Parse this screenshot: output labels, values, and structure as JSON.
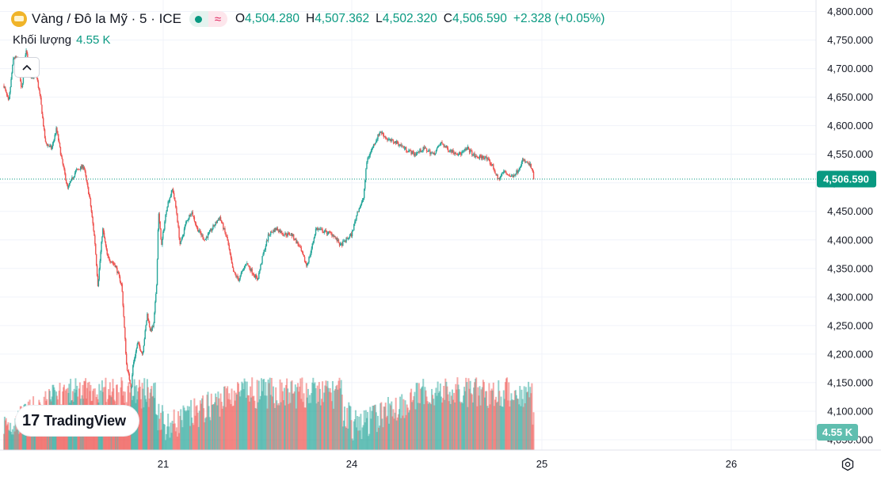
{
  "header": {
    "symbol_title": "Vàng / Đô la Mỹ · 5 · ICE",
    "open_label": "O",
    "open_value": "4,504.280",
    "high_label": "H",
    "high_value": "4,507.362",
    "low_label": "L",
    "low_value": "4,502.320",
    "close_label": "C",
    "close_value": "4,506.590",
    "change": "+2.328 (+0.05%)"
  },
  "volume_legend": {
    "label": "Khối lượng",
    "value": "4.55 K"
  },
  "branding": {
    "logo_mark": "17",
    "logo_text": "TradingView"
  },
  "colors": {
    "up": "#26a69a",
    "down": "#ef5350",
    "up_text": "#089981",
    "price_tag": "#089981"
  },
  "chart_data": {
    "type": "candlestick",
    "title": "Vàng / Đô la Mỹ · 5 · ICE",
    "y_axis": {
      "min": 4050,
      "max": 4800,
      "ticks": [
        "4,800.000",
        "4,750.000",
        "4,700.000",
        "4,650.000",
        "4,600.000",
        "4,550.000",
        "4,500.000",
        "4,450.000",
        "4,400.000",
        "4,350.000",
        "4,300.000",
        "4,250.000",
        "4,200.000",
        "4,150.000",
        "4,100.000",
        "4,050.000"
      ]
    },
    "x_axis": {
      "labels": [
        "21",
        "24",
        "25",
        "26"
      ]
    },
    "last_price": {
      "label": "4,506.590",
      "value": 4506.59
    },
    "last_volume": {
      "label": "4.55 K",
      "value": 4.55
    },
    "price_path": [
      [
        0,
        4670
      ],
      [
        0.03,
        4640
      ],
      [
        0.06,
        4720
      ],
      [
        0.09,
        4715
      ],
      [
        0.11,
        4660
      ],
      [
        0.14,
        4735
      ],
      [
        0.17,
        4680
      ],
      [
        0.2,
        4695
      ],
      [
        0.23,
        4645
      ],
      [
        0.26,
        4570
      ],
      [
        0.3,
        4560
      ],
      [
        0.33,
        4595
      ],
      [
        0.36,
        4545
      ],
      [
        0.4,
        4490
      ],
      [
        0.45,
        4520
      ],
      [
        0.5,
        4530
      ],
      [
        0.54,
        4470
      ],
      [
        0.57,
        4400
      ],
      [
        0.59,
        4320
      ],
      [
        0.62,
        4420
      ],
      [
        0.65,
        4370
      ],
      [
        0.7,
        4355
      ],
      [
        0.74,
        4320
      ],
      [
        0.77,
        4180
      ],
      [
        0.8,
        4140
      ],
      [
        0.81,
        4180
      ],
      [
        0.84,
        4220
      ],
      [
        0.87,
        4200
      ],
      [
        0.9,
        4270
      ],
      [
        0.92,
        4240
      ],
      [
        0.94,
        4250
      ],
      [
        0.96,
        4330
      ],
      [
        0.97,
        4450
      ],
      [
        0.99,
        4390
      ],
      [
        1.02,
        4460
      ],
      [
        1.05,
        4490
      ],
      [
        1.07,
        4450
      ],
      [
        1.09,
        4390
      ],
      [
        1.12,
        4430
      ],
      [
        1.15,
        4450
      ],
      [
        1.18,
        4420
      ],
      [
        1.22,
        4400
      ],
      [
        1.26,
        4420
      ],
      [
        1.3,
        4440
      ],
      [
        1.34,
        4400
      ],
      [
        1.37,
        4345
      ],
      [
        1.4,
        4330
      ],
      [
        1.44,
        4360
      ],
      [
        1.48,
        4340
      ],
      [
        1.5,
        4330
      ],
      [
        1.53,
        4375
      ],
      [
        1.56,
        4410
      ],
      [
        1.6,
        4420
      ],
      [
        1.64,
        4410
      ],
      [
        1.68,
        4410
      ],
      [
        1.72,
        4390
      ],
      [
        1.76,
        4355
      ],
      [
        1.78,
        4375
      ],
      [
        1.81,
        4420
      ],
      [
        1.85,
        4415
      ],
      [
        1.9,
        4410
      ],
      [
        1.94,
        4390
      ],
      [
        1.97,
        4400
      ],
      [
        2.0,
        4410
      ],
      [
        2.03,
        4450
      ],
      [
        2.06,
        4470
      ],
      [
        2.08,
        4540
      ],
      [
        2.12,
        4570
      ],
      [
        2.15,
        4590
      ],
      [
        2.19,
        4575
      ],
      [
        2.24,
        4570
      ],
      [
        2.28,
        4560
      ],
      [
        2.33,
        4550
      ],
      [
        2.38,
        4560
      ],
      [
        2.43,
        4550
      ],
      [
        2.47,
        4570
      ],
      [
        2.5,
        4560
      ],
      [
        2.53,
        4555
      ],
      [
        2.57,
        4550
      ],
      [
        2.61,
        4560
      ],
      [
        2.65,
        4545
      ],
      [
        2.7,
        4545
      ],
      [
        2.74,
        4530
      ],
      [
        2.77,
        4505
      ],
      [
        2.8,
        4520
      ],
      [
        2.84,
        4510
      ],
      [
        2.87,
        4520
      ],
      [
        2.9,
        4540
      ],
      [
        2.94,
        4530
      ],
      [
        2.96,
        4506.59
      ]
    ]
  }
}
